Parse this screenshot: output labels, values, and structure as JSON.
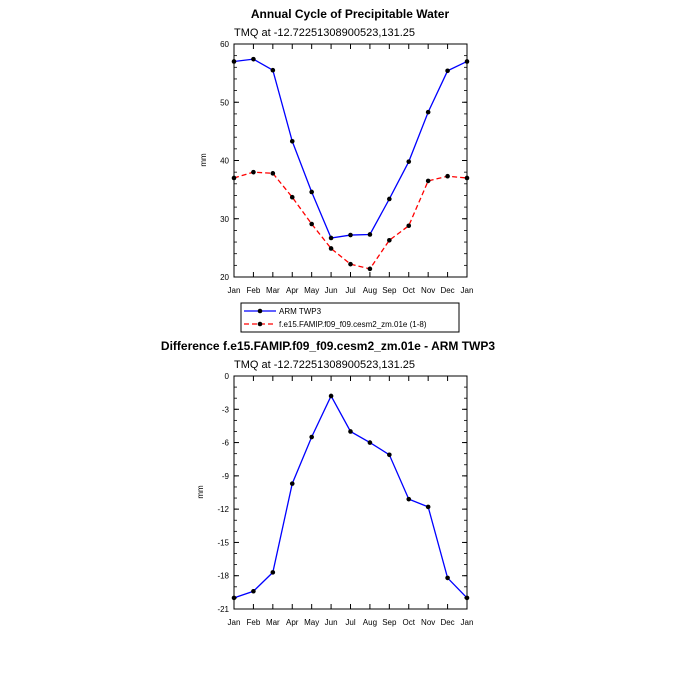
{
  "chart_data": [
    {
      "type": "line",
      "title": "Annual Cycle of Precipitable Water",
      "subtitle": "TMQ at -12.72251308900523,131.25",
      "xlabel": "",
      "ylabel": "mm",
      "categories": [
        "Jan",
        "Feb",
        "Mar",
        "Apr",
        "May",
        "Jun",
        "Jul",
        "Aug",
        "Sep",
        "Oct",
        "Nov",
        "Dec",
        "Jan"
      ],
      "ylim": [
        20,
        60
      ],
      "yticks": [
        "20",
        "30",
        "40",
        "50",
        "60"
      ],
      "grid": false,
      "legend_position": "below",
      "series": [
        {
          "name": "ARM TWP3",
          "color": "#0000ff",
          "dash": "solid",
          "values": [
            57.0,
            57.4,
            55.5,
            43.3,
            34.6,
            26.7,
            27.2,
            27.3,
            33.4,
            39.8,
            48.3,
            55.4,
            57.0
          ]
        },
        {
          "name": "f.e15.FAMIP.f09_f09.cesm2_zm.01e (1-8)",
          "color": "#ff0000",
          "dash": "dashed",
          "values": [
            37.0,
            38.0,
            37.8,
            33.7,
            29.1,
            24.9,
            22.2,
            21.4,
            26.3,
            28.8,
            36.5,
            37.3,
            37.0
          ]
        }
      ]
    },
    {
      "type": "line",
      "title": "Difference f.e15.FAMIP.f09_f09.cesm2_zm.01e - ARM TWP3",
      "subtitle": "TMQ at -12.72251308900523,131.25",
      "xlabel": "",
      "ylabel": "mm",
      "categories": [
        "Jan",
        "Feb",
        "Mar",
        "Apr",
        "May",
        "Jun",
        "Jul",
        "Aug",
        "Sep",
        "Oct",
        "Nov",
        "Dec",
        "Jan"
      ],
      "ylim": [
        -21,
        0
      ],
      "yticks": [
        "-21",
        "-18",
        "-15",
        "-12",
        "-9",
        "-6",
        "-3",
        "0"
      ],
      "grid": false,
      "series": [
        {
          "name": "Difference",
          "color": "#0000ff",
          "dash": "solid",
          "values": [
            -20.0,
            -19.4,
            -17.7,
            -9.7,
            -5.5,
            -1.8,
            -5.0,
            -6.0,
            -7.1,
            -11.1,
            -11.8,
            -18.2,
            -20.0
          ]
        }
      ]
    }
  ]
}
